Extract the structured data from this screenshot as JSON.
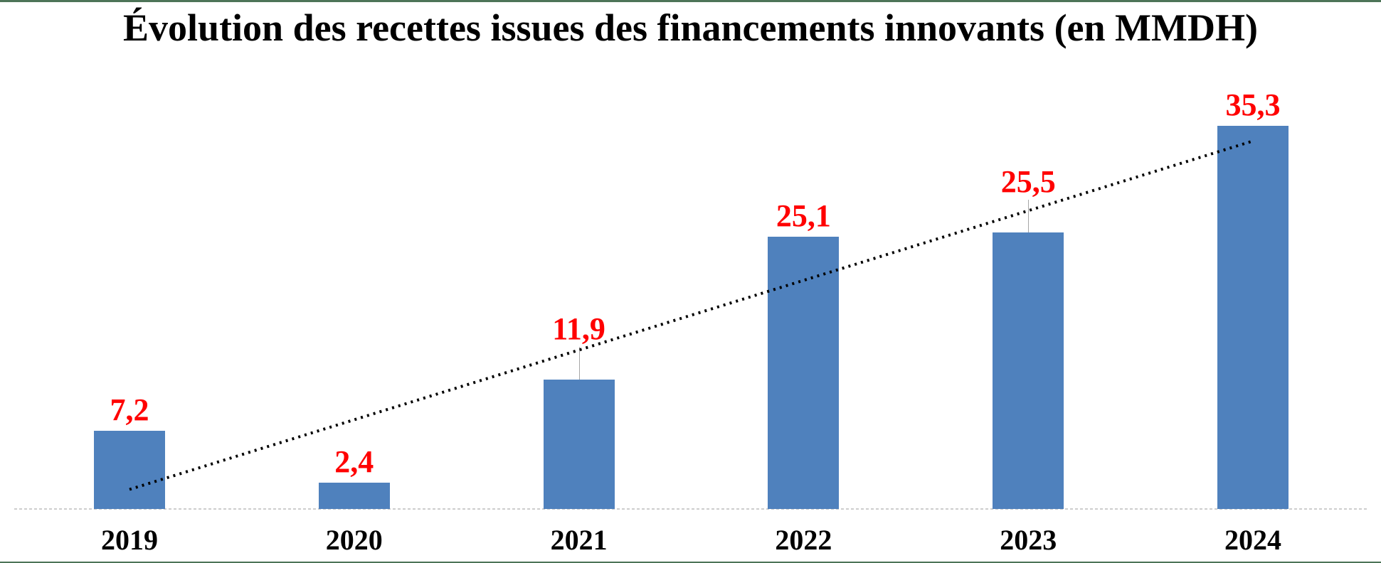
{
  "title": "Évolution des recettes issues des financements innovants (en MMDH)",
  "colors": {
    "bar": "#4f81bd",
    "value_label": "#ff0000",
    "trendline": "#000000",
    "axis_line": "#cdcdcd",
    "leader_line": "#a6a6a6",
    "page_border": "#4d7458",
    "title_text": "#000000",
    "year_label": "#000000",
    "background": "#ffffff"
  },
  "chart_data": {
    "type": "bar",
    "title": "Évolution des recettes issues des financements innovants (en MMDH)",
    "categories": [
      "2019",
      "2020",
      "2021",
      "2022",
      "2023",
      "2024"
    ],
    "values": [
      7.2,
      2.4,
      11.9,
      25.1,
      25.5,
      35.3
    ],
    "value_labels": [
      "7,2",
      "2,4",
      "11,9",
      "25,1",
      "25,5",
      "35,3"
    ],
    "unit": "MMDH",
    "xlabel": "",
    "ylabel": "",
    "ylim": [
      0,
      37
    ],
    "grid": false,
    "legend": false,
    "y_axis_visible": false,
    "x_axis_style": "dashed-light-gray",
    "label_leader_categories": [
      "2021",
      "2023"
    ],
    "trendline": {
      "style": "dotted",
      "color": "#000000",
      "value_at_first_category": 1.8,
      "value_at_last_category": 33.9
    }
  }
}
